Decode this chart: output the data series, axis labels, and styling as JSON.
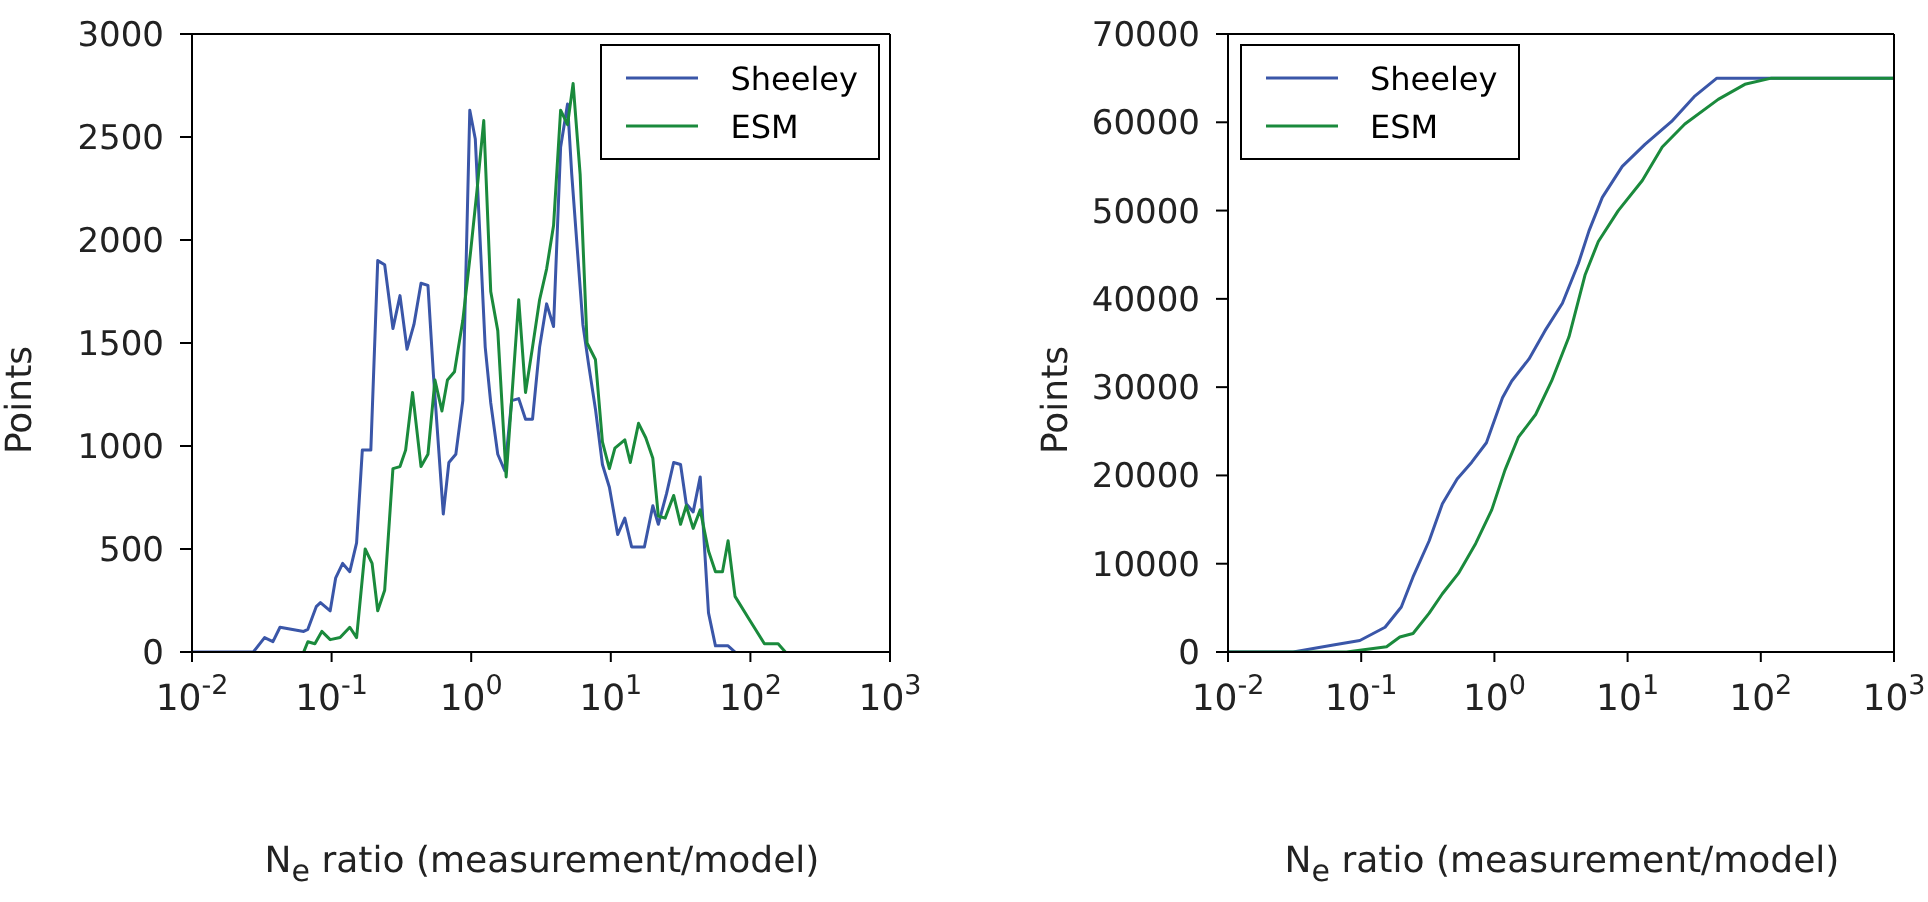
{
  "chart_data": [
    {
      "type": "line",
      "xlabel": "N$_{e}$ ratio (measurement/model)",
      "ylabel": "Points",
      "log": "x",
      "xlim": [
        0.01,
        1000
      ],
      "xticks": [
        {
          "value": 0.01,
          "label": "10$^{-2}$"
        },
        {
          "value": 0.1,
          "label": "10$^{-1}$"
        },
        {
          "value": 1,
          "label": "10$^{0}$"
        },
        {
          "value": 10,
          "label": "10$^{1}$"
        },
        {
          "value": 100,
          "label": "10$^{2}$"
        },
        {
          "value": 1000,
          "label": "10$^{3}$"
        }
      ],
      "ylim": [
        0,
        3000
      ],
      "yticks": [
        0,
        500,
        1000,
        1500,
        2000,
        2500,
        3000
      ],
      "legend": "top right",
      "marker": "none",
      "series": [
        {
          "name": "Sheeley",
          "color": "#3a56a8",
          "x": [
            0.01,
            0.0275,
            0.0331,
            0.038,
            0.0427,
            0.0631,
            0.0676,
            0.0776,
            0.0832,
            0.0977,
            0.107,
            0.12,
            0.135,
            0.151,
            0.166,
            0.191,
            0.214,
            0.24,
            0.275,
            0.309,
            0.347,
            0.389,
            0.437,
            0.49,
            0.537,
            0.631,
            0.692,
            0.776,
            0.871,
            0.977,
            1.07,
            1.26,
            1.38,
            1.55,
            1.74,
            1.95,
            2.19,
            2.45,
            2.75,
            3.09,
            3.47,
            3.89,
            4.37,
            4.9,
            5.25,
            6.31,
            6.92,
            7.76,
            8.71,
            9.77,
            11.2,
            12.6,
            14.1,
            17.4,
            20,
            21.9,
            25.1,
            28.2,
            31.6,
            34.7,
            38.9,
            43.7,
            50.1,
            56.2,
            69.2,
            77.6
          ],
          "values": [
            0,
            0,
            70,
            50,
            120,
            100,
            110,
            220,
            240,
            200,
            360,
            430,
            390,
            530,
            980,
            980,
            1900,
            1880,
            1570,
            1730,
            1470,
            1590,
            1790,
            1780,
            1340,
            670,
            920,
            960,
            1220,
            2630,
            2490,
            1480,
            1210,
            960,
            880,
            1220,
            1230,
            1130,
            1130,
            1480,
            1690,
            1580,
            2450,
            2660,
            2320,
            1590,
            1400,
            1180,
            910,
            800,
            570,
            650,
            510,
            510,
            710,
            620,
            770,
            920,
            910,
            720,
            680,
            850,
            190,
            30,
            30,
            0
          ]
        },
        {
          "name": "ESM",
          "color": "#1a8a3c",
          "x": [
            0.0631,
            0.0676,
            0.0759,
            0.0851,
            0.0977,
            0.115,
            0.135,
            0.151,
            0.174,
            0.195,
            0.214,
            0.24,
            0.275,
            0.309,
            0.339,
            0.38,
            0.437,
            0.49,
            0.55,
            0.617,
            0.676,
            0.759,
            0.871,
            0.989,
            1.1,
            1.23,
            1.38,
            1.55,
            1.78,
            2.19,
            2.45,
            2.75,
            3.09,
            3.47,
            3.89,
            4.37,
            4.9,
            5.37,
            6.03,
            6.76,
            7.76,
            8.71,
            9.77,
            10.7,
            12.6,
            13.8,
            15.8,
            17.8,
            20,
            21.9,
            24.5,
            28.2,
            31.6,
            34.7,
            38.9,
            43.7,
            50.1,
            56.2,
            63.1,
            69.2,
            77.6,
            97.7,
            126,
            158,
            178
          ],
          "values": [
            0,
            50,
            40,
            100,
            60,
            70,
            120,
            70,
            500,
            430,
            200,
            300,
            890,
            900,
            980,
            1260,
            900,
            960,
            1320,
            1170,
            1320,
            1360,
            1610,
            1940,
            2240,
            2580,
            1750,
            1560,
            850,
            1710,
            1260,
            1480,
            1710,
            1860,
            2070,
            2630,
            2560,
            2760,
            2320,
            1500,
            1420,
            1020,
            890,
            990,
            1030,
            920,
            1110,
            1040,
            940,
            660,
            650,
            760,
            620,
            710,
            600,
            690,
            490,
            390,
            390,
            540,
            270,
            160,
            40,
            40,
            0
          ]
        }
      ]
    },
    {
      "type": "line",
      "xlabel": "N$_{e}$ ratio (measurement/model)",
      "ylabel": "Points",
      "log": "x",
      "xlim": [
        0.01,
        1000
      ],
      "xticks": [
        {
          "value": 0.01,
          "label": "10$^{-2}$"
        },
        {
          "value": 0.1,
          "label": "10$^{-1}$"
        },
        {
          "value": 1,
          "label": "10$^{0}$"
        },
        {
          "value": 10,
          "label": "10$^{1}$"
        },
        {
          "value": 100,
          "label": "10$^{2}$"
        },
        {
          "value": 1000,
          "label": "10$^{3}$"
        }
      ],
      "ylim": [
        0,
        70000
      ],
      "yticks": [
        0,
        10000,
        20000,
        30000,
        40000,
        50000,
        60000,
        70000
      ],
      "legend": "top left",
      "marker": "none",
      "series": [
        {
          "name": "Sheeley",
          "color": "#3a56a8",
          "x": [
            0.01,
            0.0309,
            0.0617,
            0.0977,
            0.151,
            0.2,
            0.245,
            0.324,
            0.407,
            0.525,
            0.676,
            0.871,
            1.15,
            1.35,
            1.82,
            2.4,
            3.24,
            4.27,
            5.13,
            6.46,
            9.12,
            13.5,
            21.4,
            31.6,
            46.8,
            1000
          ],
          "values": [
            0,
            0,
            800,
            1300,
            2800,
            5100,
            8500,
            12600,
            16800,
            19600,
            21500,
            23700,
            28800,
            30700,
            33200,
            36400,
            39500,
            44000,
            47700,
            51500,
            55000,
            57500,
            60100,
            62900,
            65000,
            65000
          ]
        },
        {
          "name": "ESM",
          "color": "#1a8a3c",
          "x": [
            0.01,
            0.0776,
            0.155,
            0.195,
            0.245,
            0.324,
            0.407,
            0.537,
            0.724,
            0.955,
            1.2,
            1.51,
            2.04,
            2.69,
            3.63,
            4.79,
            6.03,
            8.51,
            12.9,
            18.2,
            26.9,
            47.9,
            75.9,
            120,
            1000
          ],
          "values": [
            0,
            0,
            600,
            1700,
            2100,
            4400,
            6600,
            8900,
            12300,
            16100,
            20600,
            24300,
            26900,
            30700,
            35700,
            42700,
            46500,
            50000,
            53400,
            57200,
            59800,
            62600,
            64300,
            65000,
            65000
          ]
        }
      ]
    }
  ]
}
